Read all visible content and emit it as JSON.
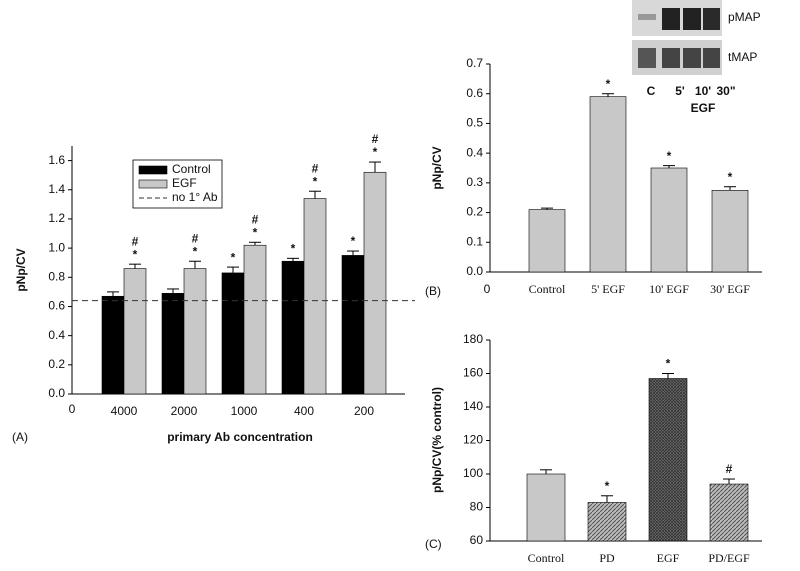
{
  "chart_data": [
    {
      "type": "bar",
      "panel": "(A)",
      "ylabel": "pNp/CV",
      "xlabel": "primary Ab concentration",
      "x_start_label": "0",
      "categories": [
        "4000",
        "2000",
        "1000",
        "400",
        "200"
      ],
      "series": [
        {
          "name": "Control",
          "color": "#000000",
          "values": [
            0.67,
            0.69,
            0.83,
            0.91,
            0.95
          ],
          "errors": [
            0.03,
            0.03,
            0.04,
            0.02,
            0.03
          ],
          "annotations": [
            null,
            null,
            [
              "*"
            ],
            [
              "*"
            ],
            [
              "*"
            ]
          ]
        },
        {
          "name": "EGF",
          "color": "#c8c8c8",
          "values": [
            0.86,
            0.86,
            1.02,
            1.34,
            1.52
          ],
          "errors": [
            0.03,
            0.05,
            0.02,
            0.05,
            0.07
          ],
          "annotations": [
            [
              "#",
              "*"
            ],
            [
              "#",
              "*"
            ],
            [
              "#",
              "*"
            ],
            [
              "#",
              "*"
            ],
            [
              "#",
              "*"
            ]
          ]
        }
      ],
      "reference_line": {
        "name": "no 1° Ab",
        "value": 0.64
      },
      "ylim": [
        0,
        1.7
      ],
      "yticks": [
        {
          "value": 0,
          "label": "0.0"
        },
        {
          "value": 0.2,
          "label": "0.2"
        },
        {
          "value": 0.4,
          "label": "0.4"
        },
        {
          "value": 0.6,
          "label": "0.6"
        },
        {
          "value": 0.8,
          "label": "0.8"
        },
        {
          "value": 1.0,
          "label": "1.0"
        },
        {
          "value": 1.2,
          "label": "1.2"
        },
        {
          "value": 1.4,
          "label": "1.4"
        },
        {
          "value": 1.6,
          "label": "1.6"
        }
      ]
    },
    {
      "type": "bar",
      "panel": "(B)",
      "ylabel": "pNp/CV",
      "x_start_label": "0",
      "categories": [
        "Control",
        "5' EGF",
        "10' EGF",
        "30' EGF"
      ],
      "values": [
        0.21,
        0.59,
        0.35,
        0.275
      ],
      "errors": [
        0.005,
        0.01,
        0.008,
        0.012
      ],
      "color": "#c8c8c8",
      "annotations": [
        null,
        [
          "*"
        ],
        [
          "*"
        ],
        [
          "*"
        ]
      ],
      "ylim": [
        0,
        0.7
      ],
      "yticks": [
        {
          "value": 0,
          "label": "0.0"
        },
        {
          "value": 0.1,
          "label": "0.1"
        },
        {
          "value": 0.2,
          "label": "0.2"
        },
        {
          "value": 0.3,
          "label": "0.3"
        },
        {
          "value": 0.4,
          "label": "0.4"
        },
        {
          "value": 0.5,
          "label": "0.5"
        },
        {
          "value": 0.6,
          "label": "0.6"
        },
        {
          "value": 0.7,
          "label": "0.7"
        }
      ],
      "blot": {
        "rows": [
          "pMAP",
          "tMAP"
        ],
        "lanes": [
          "C",
          "5'",
          "10'",
          "30\""
        ],
        "group": "EGF"
      }
    },
    {
      "type": "bar",
      "panel": "(C)",
      "ylabel": "pNp/CV(% control)",
      "categories": [
        "Control",
        "PD",
        "EGF",
        "PD/EGF"
      ],
      "values": [
        100,
        83,
        157,
        94
      ],
      "errors": [
        2.5,
        4,
        3,
        3
      ],
      "color": "#c8c8c8",
      "patterns": [
        "solid",
        "diagonal",
        "crosshatch",
        "diagonal"
      ],
      "annotations": [
        null,
        [
          "*"
        ],
        [
          "*"
        ],
        [
          "#"
        ]
      ],
      "ylim": [
        60,
        180
      ],
      "yticks": [
        60,
        80,
        100,
        120,
        140,
        160,
        180
      ]
    }
  ]
}
